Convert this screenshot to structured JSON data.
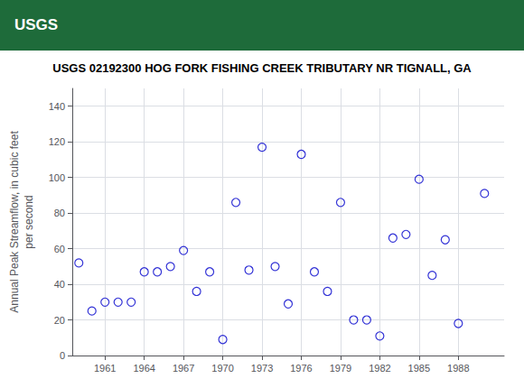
{
  "chart_data": {
    "type": "scatter",
    "title": "USGS 02192300 HOG FORK FISHING CREEK TRIBUTARY NR TIGNALL, GA",
    "annotations": [
      "USGS"
    ],
    "ylabel": "Annual Peak Streamflow, in cubic feet\nper second",
    "x": [
      1959,
      1960,
      1961,
      1962,
      1963,
      1964,
      1965,
      1966,
      1967,
      1968,
      1969,
      1970,
      1971,
      1972,
      1973,
      1974,
      1975,
      1976,
      1977,
      1978,
      1979,
      1980,
      1981,
      1982,
      1983,
      1984,
      1985,
      1986,
      1987,
      1988,
      1990
    ],
    "values": [
      52,
      25,
      30,
      30,
      30,
      47,
      47,
      50,
      59,
      36,
      47,
      9,
      86,
      48,
      117,
      50,
      29,
      113,
      47,
      36,
      86,
      20,
      20,
      11,
      66,
      68,
      99,
      45,
      65,
      18,
      91
    ],
    "color": "#0000cc",
    "marker": "circle",
    "xlim": [
      1958.5,
      1991.5
    ],
    "xticks": [
      1961,
      1964,
      1967,
      1970,
      1973,
      1976,
      1979,
      1982,
      1985,
      1988
    ],
    "ylim": [
      0,
      150
    ],
    "yticks": [
      0,
      20,
      40,
      60,
      80,
      100,
      120,
      140
    ],
    "grid": true
  }
}
